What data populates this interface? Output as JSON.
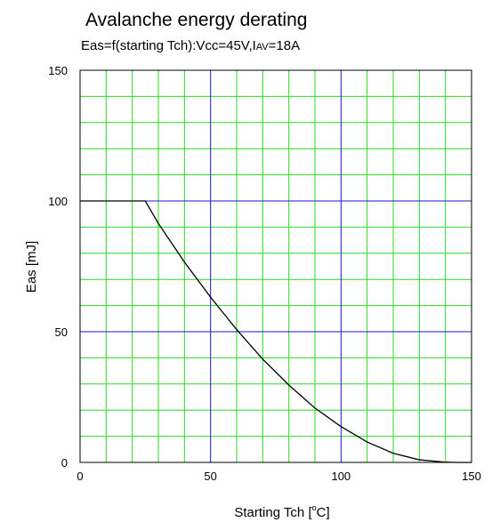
{
  "chart_data": {
    "type": "line",
    "title": "Avalanche energy derating",
    "subtitle": {
      "prefix": "Eas=f(starting Tch):Vcc=45V,I",
      "subscript": "AV",
      "suffix": "=18A"
    },
    "xlabel": {
      "prefix": "Starting Tch [",
      "superscript": "o",
      "suffix": "C]"
    },
    "ylabel": "Eas [mJ]",
    "xlim": [
      0,
      150
    ],
    "ylim": [
      0,
      150
    ],
    "x_ticks": [
      "0",
      "50",
      "100",
      "150"
    ],
    "y_ticks": [
      "0",
      "50",
      "100",
      "150"
    ],
    "grid": true,
    "grid_minor_step": 10,
    "grid_major_step": 50,
    "colors": {
      "minor_grid": "#22dd22",
      "major_grid": "#1a1acc",
      "line": "#000000",
      "frame": "#000000"
    },
    "series": [
      {
        "x": [
          0,
          25,
          30,
          40,
          50,
          60,
          70,
          80,
          90,
          100,
          110,
          120,
          130,
          140,
          145,
          150
        ],
        "y": [
          100,
          100,
          91.4,
          76.6,
          63.2,
          50.8,
          39.5,
          29.6,
          20.8,
          13.7,
          7.8,
          3.5,
          1.0,
          0.1,
          0,
          0
        ]
      }
    ]
  }
}
